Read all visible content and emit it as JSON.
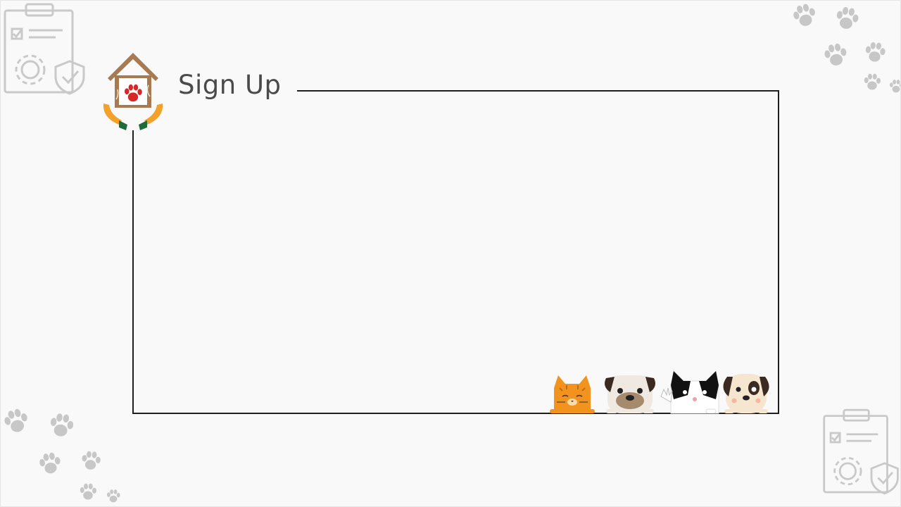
{
  "page": {
    "title": "Sign Up"
  },
  "icons": {
    "logo": "pet-shelter-house-logo-icon",
    "clipboard": "clipboard-settings-shield-icon",
    "paw": "paw-print-icon",
    "pets": "peeking-cat-and-dogs-illustration"
  },
  "colors": {
    "background": "#f9f9f9",
    "frame": "#1e1e1e",
    "title": "#4a4a4a",
    "decor_gray": "#c7c7c7",
    "logo_brown": "#a87a52",
    "logo_red": "#d62828",
    "logo_orange": "#f2a12a",
    "logo_green": "#1f6b3a"
  }
}
